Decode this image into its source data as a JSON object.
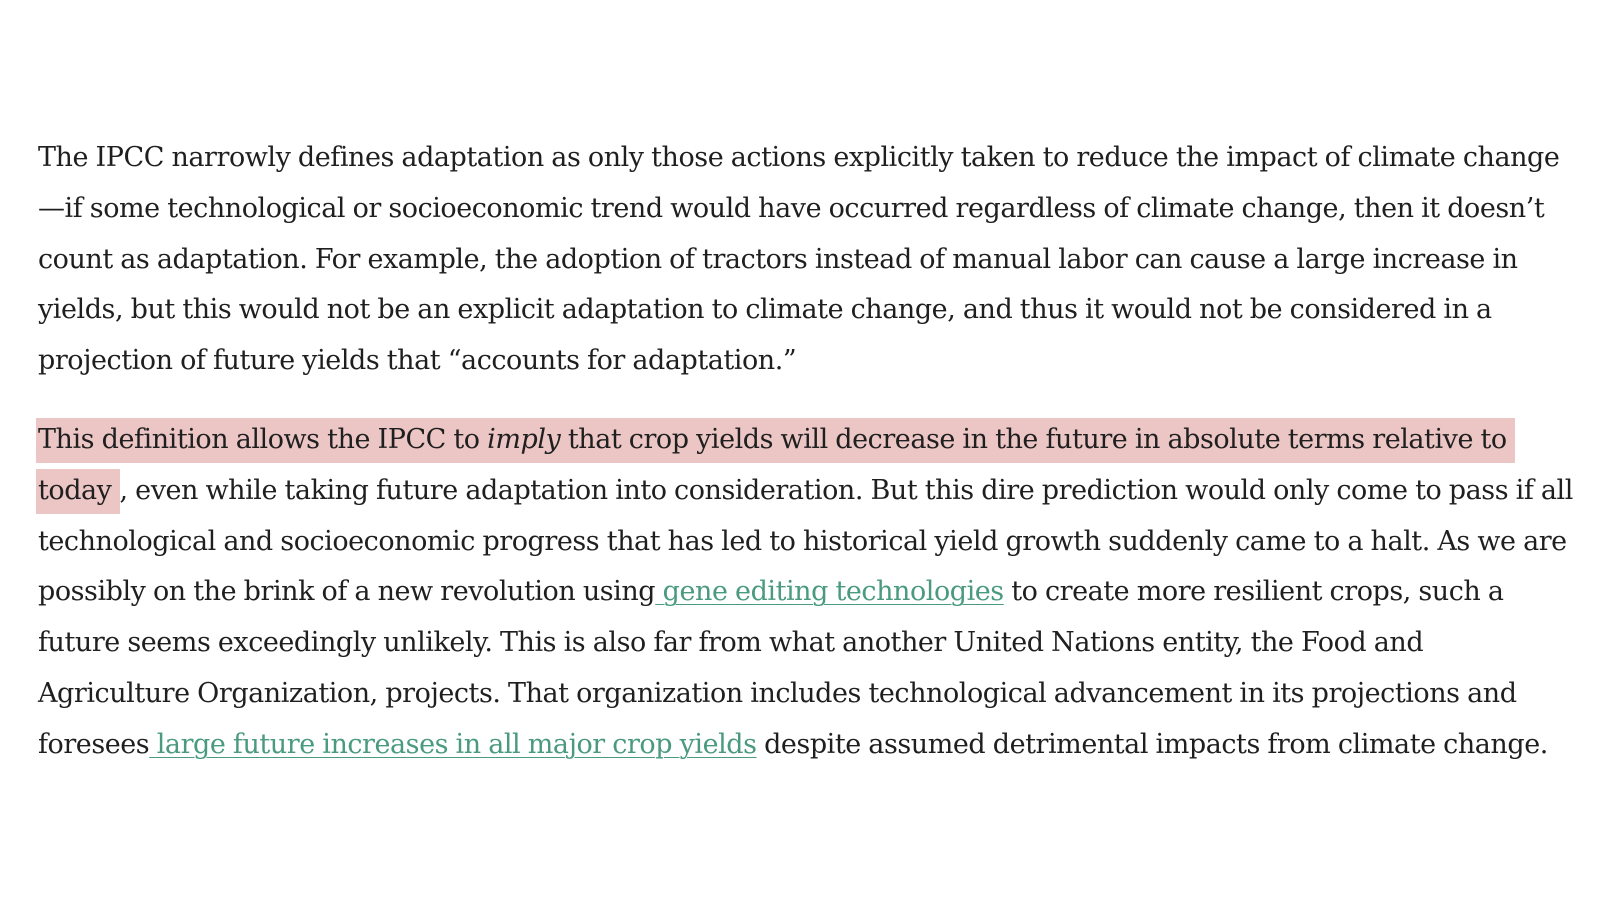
{
  "article": {
    "paragraph1": "The IPCC narrowly defines adaptation as only those actions explicitly taken to reduce the impact of climate change—if some technological or socioeconomic trend would have occurred regardless of climate change, then it doesn’t count as adaptation. For example, the adoption of tractors instead of manual labor can cause a large increase in yields, but this would not be an explicit adaptation to climate change, and thus it would not be considered in a projection of future yields that “accounts for adaptation.”",
    "paragraph2": {
      "highlight_before": "This definition allows the IPCC to ",
      "highlight_emphasis": "imply",
      "highlight_after": " that crop yields will decrease in the future in absolute terms relative to today",
      "text_1": ", even while taking future adaptation into consideration. But this dire prediction would only come to pass if all technological and socioeconomic progress that has led to historical yield growth suddenly came to a halt. As we are possibly on the brink of a new revolution using",
      "link_1": " gene editing technologies",
      "text_2": " to create more resilient crops, such a future seems exceedingly unlikely. This is also far from what another United Nations entity, the Food and Agriculture Organization, projects. That organization includes technological advancement in its projections and foresees",
      "link_2": " large future increases in all major crop yields",
      "text_3": " despite assumed detrimental impacts from climate change."
    }
  },
  "colors": {
    "text": "#1f1f1f",
    "highlight": "#ecc5c5",
    "link": "#4a9a80",
    "background": "#ffffff"
  }
}
